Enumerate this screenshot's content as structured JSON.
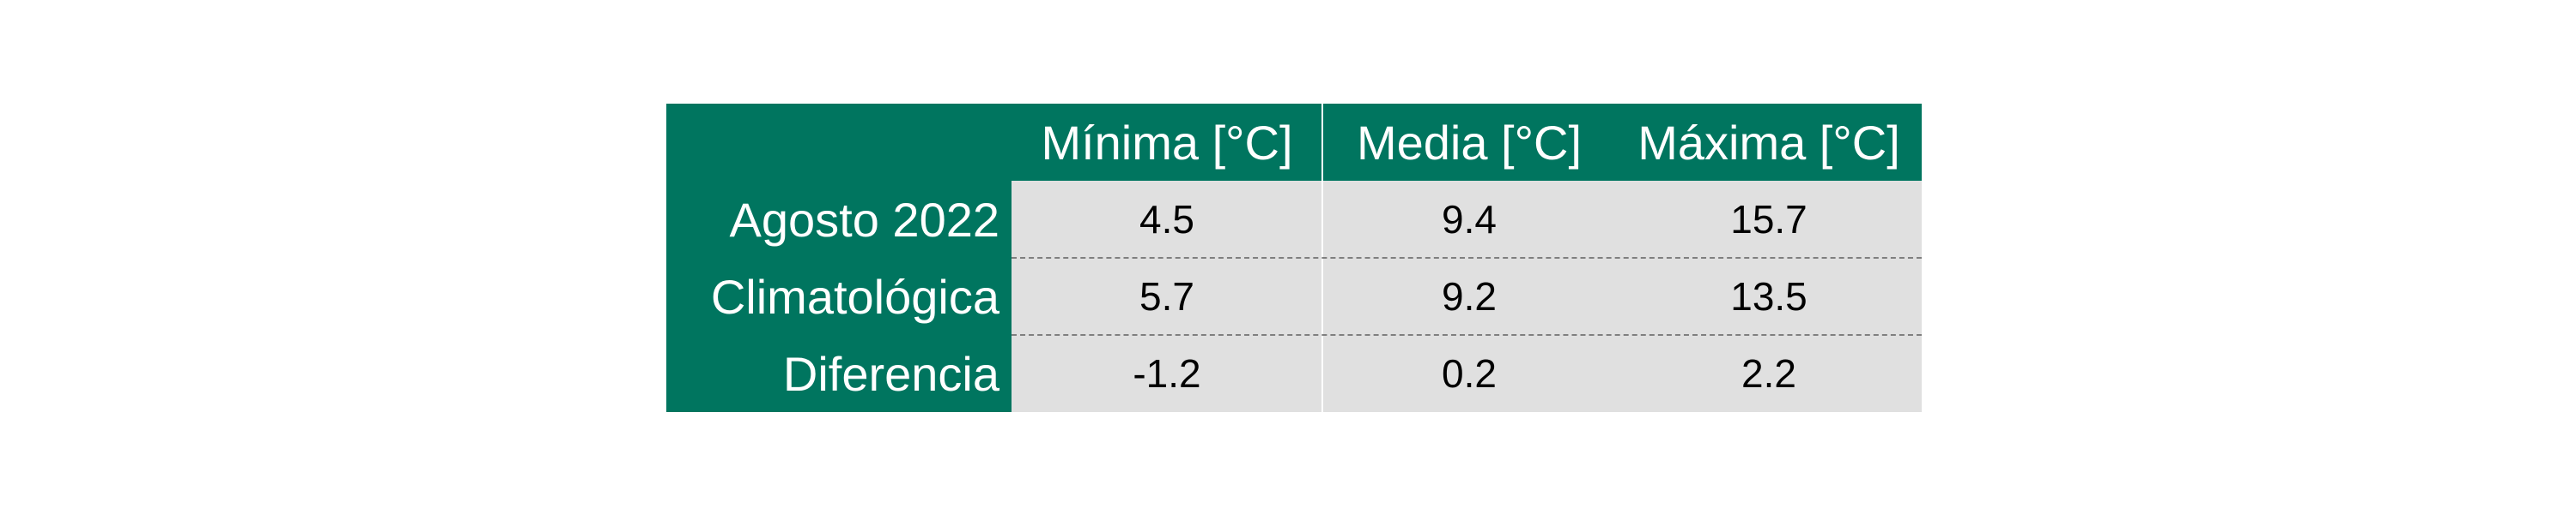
{
  "colors": {
    "header_bg": "#00755f",
    "cell_bg": "#e0e0e0",
    "header_text": "#ffffff",
    "value_text": "#000000"
  },
  "chart_data": {
    "type": "table",
    "columns": [
      "Mínima [°C]",
      "Media [°C]",
      "Máxima [°C]"
    ],
    "rows": [
      {
        "label": "Agosto 2022",
        "values": [
          "4.5",
          "9.4",
          "15.7"
        ]
      },
      {
        "label": "Climatológica",
        "values": [
          "5.7",
          "9.2",
          "13.5"
        ]
      },
      {
        "label": "Diferencia",
        "values": [
          "-1.2",
          "0.2",
          "2.2"
        ]
      }
    ]
  }
}
